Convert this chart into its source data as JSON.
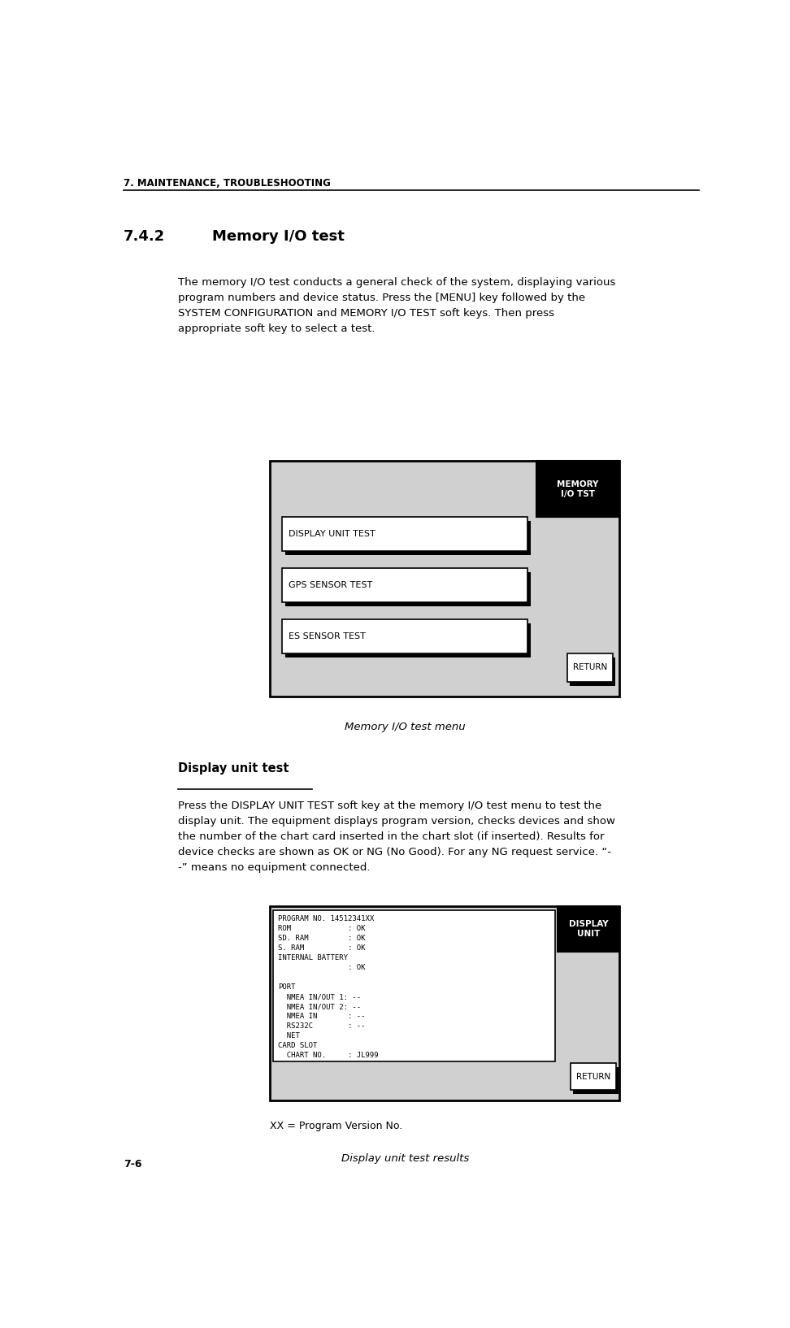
{
  "page_width": 9.72,
  "page_height": 16.34,
  "bg_color": "#ffffff",
  "header_text": "7. MAINTENANCE, TROUBLESHOOTING",
  "section_number": "7.4.2",
  "section_title": "Memory I/O test",
  "body_text_1": "The memory I/O test conducts a general check of the system, displaying various\nprogram numbers and device status. Press the [MENU] key followed by the\nSYSTEM CONFIGURATION and MEMORY I/O TEST soft keys. Then press\nappropriate soft key to select a test.",
  "menu_diagram": {
    "bg": "#d0d0d0",
    "border": "#000000",
    "tab_label": "MEMORY\nI/O TST",
    "tab_bg": "#000000",
    "tab_fg": "#ffffff",
    "buttons": [
      "DISPLAY UNIT TEST",
      "GPS SENSOR TEST",
      "ES SENSOR TEST"
    ],
    "return_label": "RETURN"
  },
  "caption_1": "Memory I/O test menu",
  "section_heading": "Display unit test",
  "body_text_2": "Press the DISPLAY UNIT TEST soft key at the memory I/O test menu to test the\ndisplay unit. The equipment displays program version, checks devices and show\nthe number of the chart card inserted in the chart slot (if inserted). Results for\ndevice checks are shown as OK or NG (No Good). For any NG request service. “-\n-” means no equipment connected.",
  "result_diagram": {
    "bg": "#d0d0d0",
    "border": "#000000",
    "screen_bg": "#ffffff",
    "tab_label": "DISPLAY\nUNIT",
    "tab_bg": "#000000",
    "tab_fg": "#ffffff",
    "return_label": "RETURN",
    "screen_lines": [
      "PROGRAM NO. 14512341XX",
      "ROM             : OK",
      "SD. RAM         : OK",
      "S. RAM          : OK",
      "INTERNAL BATTERY",
      "                : OK",
      "",
      "PORT",
      "  NMEA IN/OUT 1: --",
      "  NMEA IN/OUT 2: --",
      "  NMEA IN       : --",
      "  RS232C        : --",
      "  NET",
      "CARD SLOT",
      "  CHART NO.     : JL999"
    ]
  },
  "caption_2": "XX = Program Version No.",
  "caption_3": "Display unit test results",
  "footer_text": "7-6"
}
